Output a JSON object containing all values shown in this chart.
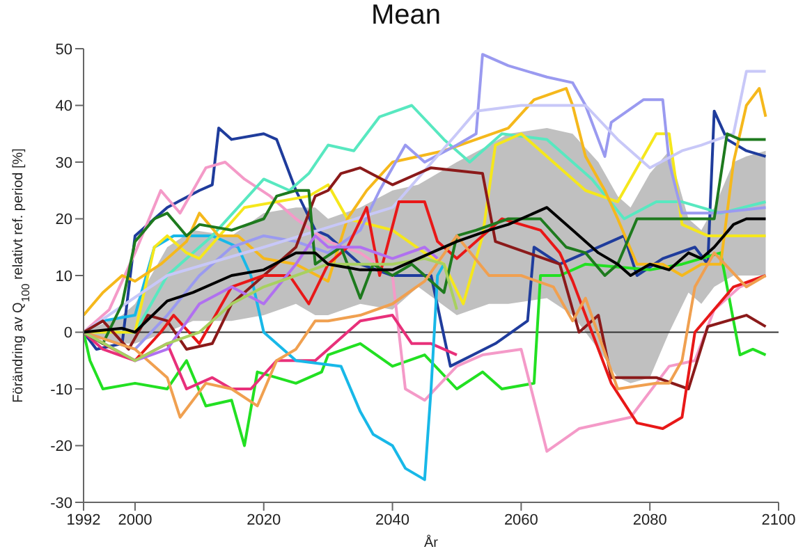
{
  "chart_data": {
    "type": "line",
    "title": "Mean",
    "xlabel": "År",
    "ylabel": "Förändring av Q$_{100}$ relativt ref. period [%]",
    "xlim": [
      1992,
      2100
    ],
    "xticks": [
      1992,
      2000,
      2020,
      2040,
      2060,
      2080,
      2100
    ],
    "ylim": [
      -30,
      50
    ],
    "yticks": [
      -30,
      -20,
      -10,
      0,
      10,
      20,
      30,
      40,
      50
    ],
    "marker": "none",
    "ref_lines": [
      {
        "axis": "y",
        "value": 0,
        "color": "#333333"
      }
    ],
    "series": [
      {
        "color": "#1f3c9c",
        "x": [
          1992,
          1994,
          1998,
          2000,
          2003,
          2005,
          2010,
          2012,
          2013,
          2015,
          2020,
          2022,
          2025,
          2028,
          2030,
          2035,
          2040,
          2044,
          2046,
          2049,
          2056,
          2061,
          2062,
          2066,
          2070,
          2076,
          2078,
          2082,
          2087,
          2089,
          2090,
          2092,
          2095,
          2098
        ],
        "values": [
          0,
          -3,
          -2,
          17,
          20,
          22,
          25,
          26,
          36,
          34,
          35,
          34,
          25,
          18,
          17,
          12,
          10,
          10,
          10,
          -6,
          -2,
          2,
          15,
          12,
          14,
          17,
          10,
          13,
          15,
          12,
          39,
          34,
          32,
          31
        ]
      },
      {
        "color": "#22e022",
        "x": [
          1992,
          1993,
          1995,
          2000,
          2005,
          2008,
          2011,
          2015,
          2017,
          2019,
          2025,
          2029,
          2030,
          2035,
          2040,
          2045,
          2050,
          2054,
          2057,
          2062,
          2063,
          2066,
          2070,
          2080,
          2085,
          2091,
          2094,
          2096,
          2098
        ],
        "values": [
          0,
          -5,
          -10,
          -9,
          -10,
          -5,
          -13,
          -12,
          -20,
          -7,
          -9,
          -7,
          -4,
          -2,
          -6,
          -4,
          -10,
          -7,
          -10,
          -9,
          10,
          10,
          12,
          11,
          12,
          14,
          -4,
          -3,
          -4
        ]
      },
      {
        "color": "#f49ac8",
        "x": [
          1992,
          1996,
          2000,
          2004,
          2007,
          2011,
          2014,
          2017,
          2021,
          2025,
          2030,
          2035,
          2040,
          2042,
          2045,
          2050,
          2054,
          2060,
          2064,
          2069,
          2077,
          2083,
          2087,
          2090,
          2094,
          2098
        ],
        "values": [
          0,
          4,
          14,
          25,
          21,
          29,
          30,
          27,
          24,
          20,
          16,
          14,
          10,
          -10,
          -12,
          -6,
          -4,
          -3,
          -21,
          -17,
          -15,
          -6,
          -5,
          4,
          8,
          10
        ]
      },
      {
        "color": "#e8307a",
        "x": [
          1992,
          1995,
          2000,
          2005,
          2008,
          2012,
          2015,
          2018,
          2022,
          2028,
          2030,
          2035,
          2040,
          2043,
          2046,
          2050
        ],
        "values": [
          0,
          -3,
          -5,
          -2,
          -10,
          -8,
          -10,
          -10,
          -5,
          -5,
          -3,
          2,
          3,
          -2,
          -2,
          -4
        ]
      },
      {
        "color": "#18b8e8",
        "x": [
          1992,
          1995,
          2000,
          2003,
          2006,
          2012,
          2016,
          2018,
          2020,
          2025,
          2032,
          2035,
          2037,
          2040,
          2042,
          2045,
          2046,
          2047,
          2048
        ],
        "values": [
          0,
          2,
          3,
          15,
          17,
          17,
          15,
          10,
          0,
          -5,
          -6,
          -14,
          -18,
          -20,
          -24,
          -26,
          -10,
          10,
          12
        ]
      },
      {
        "color": "#58e8c0",
        "x": [
          1992,
          2000,
          2005,
          2012,
          2016,
          2020,
          2024,
          2027,
          2030,
          2034,
          2038,
          2043,
          2048,
          2052,
          2057,
          2064,
          2071,
          2076,
          2081,
          2085,
          2091,
          2098
        ],
        "values": [
          0,
          0,
          10,
          17,
          22,
          27,
          25,
          28,
          33,
          32,
          38,
          40,
          34,
          30,
          35,
          34,
          27,
          20,
          23,
          23,
          21,
          23
        ]
      },
      {
        "color": "#f5e71c",
        "x": [
          1992,
          2000,
          2003,
          2005,
          2008,
          2010,
          2017,
          2027,
          2030,
          2033,
          2040,
          2045,
          2048,
          2051,
          2054,
          2056,
          2060,
          2065,
          2070,
          2075,
          2081,
          2083,
          2085,
          2089,
          2098
        ],
        "values": [
          0,
          0,
          15,
          17,
          14,
          13,
          22,
          24,
          26,
          20,
          18,
          14,
          12,
          5,
          17,
          33,
          35,
          30,
          25,
          23,
          35,
          35,
          19,
          17,
          17
        ]
      },
      {
        "color": "#f5b81c",
        "x": [
          1992,
          1995,
          1998,
          2000,
          2004,
          2008,
          2010,
          2013,
          2016,
          2020,
          2025,
          2030,
          2033,
          2036,
          2040,
          2048,
          2058,
          2062,
          2067,
          2068,
          2070,
          2073,
          2075,
          2078,
          2082,
          2085,
          2088,
          2091,
          2093,
          2095,
          2097,
          2098
        ],
        "values": [
          3,
          7,
          10,
          9,
          12,
          16,
          21,
          17,
          17,
          13,
          12,
          9,
          20,
          25,
          30,
          32,
          36,
          41,
          43,
          40,
          31,
          25,
          20,
          12,
          12,
          10,
          12,
          12,
          30,
          40,
          43,
          38
        ]
      },
      {
        "color": "#9a9af0",
        "x": [
          1992,
          2000,
          2005,
          2010,
          2015,
          2020,
          2025,
          2030,
          2035,
          2038,
          2042,
          2045,
          2050,
          2053,
          2054,
          2058,
          2064,
          2068,
          2070,
          2073,
          2074,
          2079,
          2082,
          2083,
          2085,
          2090,
          2098
        ],
        "values": [
          0,
          -3,
          3,
          10,
          15,
          17,
          16,
          14,
          18,
          25,
          33,
          30,
          33,
          35,
          49,
          47,
          45,
          44,
          40,
          31,
          37,
          41,
          41,
          30,
          21,
          21,
          22
        ]
      },
      {
        "color": "#c8c8f8",
        "x": [
          1992,
          2005,
          2020,
          2040,
          2050,
          2053,
          2060,
          2070,
          2075,
          2080,
          2085,
          2088,
          2093,
          2095,
          2098
        ],
        "values": [
          0,
          10,
          15,
          22,
          35,
          39,
          40,
          40,
          34,
          29,
          32,
          33,
          35,
          46,
          46
        ]
      },
      {
        "color": "#8b1a1a",
        "x": [
          1992,
          1995,
          1999,
          2002,
          2005,
          2008,
          2012,
          2015,
          2020,
          2025,
          2028,
          2030,
          2032,
          2035,
          2040,
          2046,
          2054,
          2056,
          2061,
          2066,
          2069,
          2072,
          2074,
          2081,
          2086,
          2089,
          2095,
          2098
        ],
        "values": [
          0,
          2,
          -3,
          3,
          2,
          -3,
          -2,
          5,
          10,
          15,
          24,
          25,
          28,
          29,
          26,
          29,
          28,
          16,
          14,
          12,
          0,
          3,
          -8,
          -8,
          -10,
          1,
          3,
          1
        ]
      },
      {
        "color": "#e81818",
        "x": [
          1992,
          1995,
          2000,
          2004,
          2006,
          2010,
          2015,
          2020,
          2024,
          2027,
          2030,
          2033,
          2036,
          2038,
          2041,
          2045,
          2047,
          2050,
          2057,
          2063,
          2066,
          2068,
          2071,
          2074,
          2078,
          2082,
          2085,
          2087,
          2093,
          2098
        ],
        "values": [
          0,
          -2,
          -5,
          0,
          3,
          -2,
          8,
          10,
          10,
          5,
          12,
          15,
          22,
          10,
          23,
          23,
          16,
          13,
          20,
          18,
          14,
          9,
          0,
          -9,
          -16,
          -17,
          -15,
          0,
          8,
          10
        ]
      },
      {
        "color": "#1e7a1e",
        "x": [
          1992,
          1995,
          1998,
          2000,
          2003,
          2005,
          2008,
          2010,
          2015,
          2020,
          2022,
          2025,
          2027,
          2028,
          2032,
          2035,
          2037,
          2040,
          2043,
          2045,
          2048,
          2050,
          2053,
          2058,
          2063,
          2067,
          2070,
          2073,
          2075,
          2078,
          2085,
          2090,
          2092,
          2094,
          2098
        ],
        "values": [
          0,
          -2,
          5,
          16,
          20,
          21,
          17,
          19,
          18,
          20,
          24,
          25,
          25,
          12,
          15,
          6,
          12,
          10,
          12,
          10,
          7,
          17,
          18,
          20,
          20,
          15,
          14,
          10,
          12,
          20,
          20,
          20,
          35,
          34,
          34
        ]
      },
      {
        "color": "#f0a050",
        "x": [
          1992,
          2000,
          2005,
          2007,
          2011,
          2015,
          2019,
          2022,
          2025,
          2028,
          2030,
          2035,
          2040,
          2045,
          2050,
          2055,
          2060,
          2065,
          2068,
          2070,
          2075,
          2081,
          2083,
          2085,
          2087,
          2090,
          2095,
          2098
        ],
        "values": [
          0,
          -3,
          -8,
          -15,
          -9,
          -10,
          -13,
          -5,
          -3,
          2,
          2,
          3,
          5,
          9,
          17,
          10,
          10,
          8,
          2,
          6,
          -10,
          -9,
          -9,
          -5,
          8,
          14,
          8,
          10
        ]
      },
      {
        "color": "#b070f0",
        "x": [
          1992,
          2000,
          2005,
          2010,
          2015,
          2020,
          2025,
          2028,
          2030,
          2035,
          2040,
          2045,
          2047
        ],
        "values": [
          0,
          -5,
          -3,
          5,
          8,
          5,
          12,
          17,
          15,
          15,
          13,
          15,
          13
        ]
      },
      {
        "color": "#a8d060",
        "x": [
          1992,
          2000,
          2005,
          2010,
          2015,
          2020,
          2025,
          2030,
          2040,
          2045,
          2048,
          2050
        ],
        "values": [
          0,
          -5,
          -2,
          0,
          5,
          8,
          10,
          12,
          12,
          13,
          12,
          4
        ]
      },
      {
        "color": "#000000",
        "x": [
          1992,
          1998,
          2000,
          2005,
          2009,
          2015,
          2020,
          2025,
          2028,
          2030,
          2035,
          2040,
          2044,
          2050,
          2055,
          2058,
          2064,
          2068,
          2072,
          2075,
          2077,
          2080,
          2083,
          2086,
          2088,
          2090,
          2093,
          2095,
          2098
        ],
        "values": [
          0,
          0.7,
          0,
          5.5,
          7,
          10,
          11,
          14,
          14,
          12,
          11,
          11,
          13,
          16,
          18,
          19,
          22,
          18,
          14,
          12,
          10,
          12,
          11,
          14,
          13,
          15,
          19,
          20,
          20
        ],
        "lower": [
          0,
          -2,
          -2,
          0,
          2,
          2,
          3,
          5,
          3,
          3,
          5,
          4,
          8,
          3,
          5,
          5,
          6,
          3,
          -3,
          -8,
          -9,
          -8,
          0,
          7,
          5,
          8,
          10,
          10,
          10
        ],
        "upper": [
          0,
          3,
          5,
          15,
          18,
          17,
          21,
          22,
          22,
          20,
          22,
          25,
          26,
          30,
          33,
          35,
          36,
          35,
          30,
          24,
          22,
          28,
          32,
          20,
          18,
          22,
          30,
          31,
          32
        ]
      }
    ]
  }
}
